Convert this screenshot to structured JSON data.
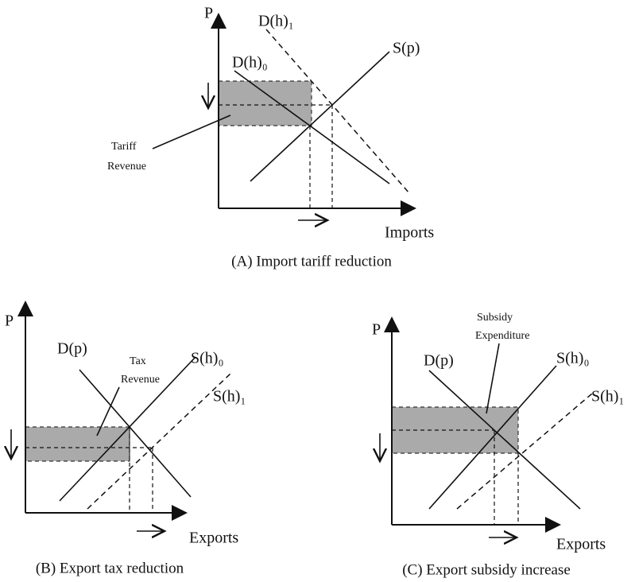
{
  "panels": [
    {
      "axis_y": "P",
      "axis_x": "Imports",
      "caption": "(A) Import tariff reduction",
      "curves": [
        "D(h)₁",
        "D(h)₀",
        "S(p)"
      ],
      "area_label": [
        "Tariff",
        "Revenue"
      ]
    },
    {
      "axis_y": "P",
      "axis_x": "Exports",
      "caption": "(B) Export tax reduction",
      "curves": [
        "D(p)",
        "S(h)₀",
        "S(h)₁"
      ],
      "area_label": [
        "Tax",
        "Revenue"
      ]
    },
    {
      "axis_y": "P",
      "axis_x": "Exports",
      "caption": "(C) Export subsidy increase",
      "curves": [
        "D(p)",
        "S(h)₀",
        "S(h)₁"
      ],
      "area_label": [
        "Subsidy",
        "Expenditure"
      ]
    }
  ]
}
